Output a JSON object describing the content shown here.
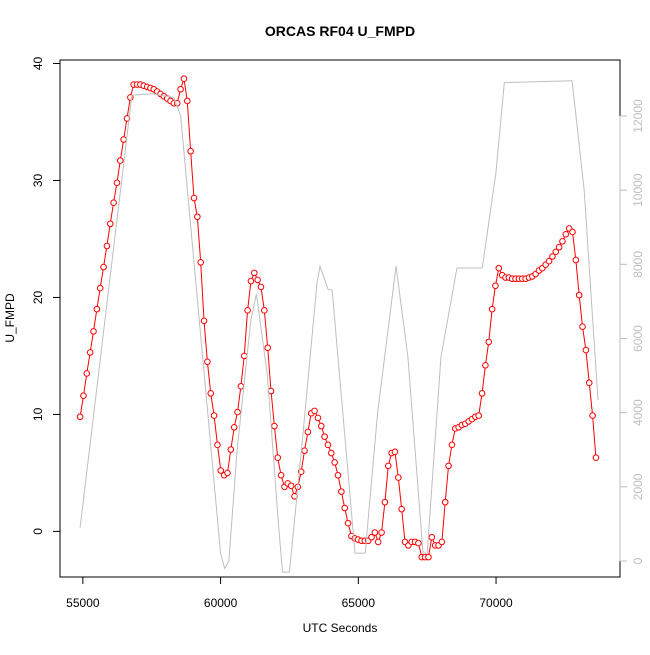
{
  "chart_data": {
    "type": "line",
    "title": "ORCAS RF04 U_FMPD",
    "x_label": "UTC Seconds",
    "y_label": "U_FMPD",
    "xlim": [
      54170,
      74500
    ],
    "xticks": [
      55000,
      60000,
      65000,
      70000
    ],
    "ylim": [
      -3.9,
      40.3
    ],
    "yticks": [
      0,
      10,
      20,
      30,
      40
    ],
    "y2lim": [
      -430,
      13510
    ],
    "y2ticks": [
      0,
      2000,
      4000,
      6000,
      8000,
      10000,
      12000
    ],
    "series": [
      {
        "color": "#ff0000",
        "markers": true,
        "x": [
          54900,
          55022,
          55143,
          55265,
          55386,
          55508,
          55630,
          55751,
          55873,
          55994,
          56116,
          56238,
          56359,
          56481,
          56602,
          56724,
          56846,
          56967,
          57089,
          57210,
          57332,
          57454,
          57575,
          57697,
          57818,
          57940,
          58062,
          58183,
          58305,
          58426,
          58548,
          58670,
          58791,
          58913,
          59034,
          59156,
          59278,
          59399,
          59521,
          59642,
          59764,
          59886,
          60007,
          60129,
          60250,
          60372,
          60494,
          60615,
          60737,
          60858,
          60980,
          61102,
          61223,
          61345,
          61466,
          61588,
          61710,
          61831,
          61953,
          62074,
          62196,
          62318,
          62439,
          62561,
          62682,
          62804,
          62926,
          63047,
          63169,
          63290,
          63412,
          63534,
          63655,
          63777,
          63898,
          64020,
          64142,
          64263,
          64385,
          64506,
          64628,
          64750,
          64871,
          64993,
          65114,
          65236,
          65358,
          65479,
          65601,
          65722,
          65844,
          65966,
          66087,
          66209,
          66330,
          66452,
          66574,
          66695,
          66817,
          66938,
          67060,
          67182,
          67303,
          67425,
          67546,
          67668,
          67790,
          67911,
          68033,
          68154,
          68276,
          68398,
          68519,
          68641,
          68762,
          68884,
          69006,
          69127,
          69249,
          69370,
          69492,
          69614,
          69735,
          69857,
          69978,
          70100,
          70222,
          70343,
          70465,
          70586,
          70708,
          70830,
          70951,
          71073,
          71194,
          71316,
          71438,
          71559,
          71681,
          71802,
          71924,
          72046,
          72167,
          72289,
          72410,
          72532,
          72654,
          72775,
          72897,
          73018,
          73140,
          73262,
          73383,
          73505,
          73626
        ],
        "values": [
          9.8,
          11.6,
          13.5,
          15.3,
          17.1,
          19.0,
          20.8,
          22.6,
          24.4,
          26.3,
          28.1,
          29.8,
          31.7,
          33.5,
          35.3,
          37.1,
          38.2,
          38.2,
          38.2,
          38.1,
          38.0,
          37.9,
          37.8,
          37.6,
          37.4,
          37.2,
          37.0,
          36.8,
          36.6,
          36.6,
          37.8,
          38.7,
          36.8,
          32.5,
          28.5,
          26.9,
          23.0,
          18.0,
          14.5,
          11.8,
          9.9,
          7.4,
          5.2,
          4.8,
          5.0,
          7.0,
          8.9,
          10.2,
          12.4,
          15.0,
          18.9,
          21.4,
          22.1,
          21.5,
          20.9,
          18.9,
          15.7,
          12.0,
          9.0,
          6.3,
          4.8,
          3.8,
          4.1,
          3.9,
          3.0,
          3.8,
          5.1,
          6.9,
          8.5,
          10.1,
          10.3,
          9.7,
          9.0,
          8.1,
          7.4,
          6.7,
          5.9,
          4.8,
          3.4,
          2.0,
          0.7,
          -0.4,
          -0.6,
          -0.7,
          -0.8,
          -0.8,
          -0.8,
          -0.5,
          -0.1,
          -0.9,
          -0.1,
          2.5,
          5.6,
          6.7,
          6.8,
          4.6,
          1.9,
          -0.9,
          -1.2,
          -0.9,
          -0.9,
          -1.0,
          -2.2,
          -2.2,
          -2.2,
          -0.5,
          -1.2,
          -1.2,
          -0.9,
          2.5,
          5.6,
          7.4,
          8.8,
          8.9,
          9.1,
          9.2,
          9.4,
          9.6,
          9.8,
          9.9,
          11.8,
          14.2,
          16.2,
          19.0,
          21.0,
          22.5,
          21.9,
          21.7,
          21.7,
          21.6,
          21.6,
          21.6,
          21.6,
          21.6,
          21.7,
          21.8,
          22.0,
          22.3,
          22.5,
          22.8,
          23.1,
          23.5,
          23.9,
          24.3,
          24.8,
          25.4,
          25.9,
          25.6,
          23.2,
          20.2,
          17.5,
          15.5,
          12.7,
          9.9,
          6.3
        ]
      },
      {
        "color": "#bebebe",
        "axis": "y2",
        "markers": false,
        "x": [
          54900,
          56780,
          57500,
          58300,
          58550,
          60000,
          60150,
          60300,
          60600,
          61100,
          61300,
          61700,
          62100,
          62250,
          62500,
          63000,
          63500,
          63610,
          63900,
          64050,
          64880,
          65250,
          65700,
          66370,
          66800,
          67350,
          67500,
          68000,
          68580,
          69500,
          70000,
          70300,
          72760,
          73200,
          73700
        ],
        "values": [
          900,
          12560,
          12600,
          12500,
          12000,
          200,
          -200,
          0,
          3000,
          6500,
          7200,
          5000,
          1000,
          -300,
          -300,
          3500,
          7500,
          7950,
          7330,
          7300,
          215,
          215,
          4000,
          7950,
          5500,
          215,
          215,
          5500,
          7900,
          7900,
          10500,
          12900,
          12950,
          10000,
          4340
        ]
      }
    ]
  }
}
